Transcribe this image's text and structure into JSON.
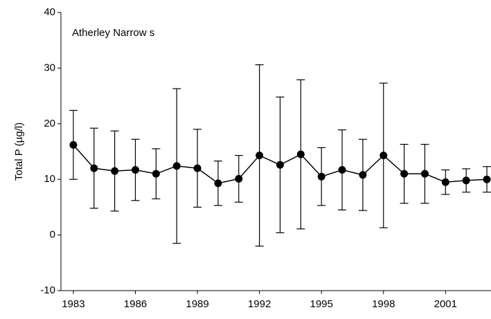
{
  "chart_data": {
    "type": "line",
    "annotation": "Atherley Narrow s",
    "ylabel": "Total P (µg/l)",
    "x": [
      1983,
      1984,
      1985,
      1986,
      1987,
      1988,
      1989,
      1990,
      1991,
      1992,
      1993,
      1994,
      1995,
      1996,
      1997,
      1998,
      1999,
      2000,
      2001,
      2002,
      2003
    ],
    "series": [
      {
        "color": "#000000",
        "values": [
          16.2,
          12,
          11.5,
          11.7,
          11,
          12.4,
          12,
          9.3,
          10.1,
          14.3,
          12.6,
          14.5,
          10.5,
          11.7,
          10.8,
          14.3,
          11,
          11,
          9.5,
          9.8,
          10
        ],
        "errors": [
          6.2,
          7.2,
          7.2,
          5.5,
          4.5,
          13.9,
          7,
          4,
          4.2,
          16.3,
          12.2,
          13.4,
          5.2,
          7.2,
          6.4,
          13,
          5.3,
          5.3,
          2.2,
          2.1,
          2.3
        ]
      }
    ],
    "xlim": [
      1982.4,
      2003.2
    ],
    "xticks": [
      1983,
      1986,
      1989,
      1992,
      1995,
      1998,
      2001
    ],
    "ylim": [
      -10,
      40
    ],
    "yticks": [
      -10,
      0,
      10,
      20,
      30,
      40
    ],
    "grid": false
  }
}
